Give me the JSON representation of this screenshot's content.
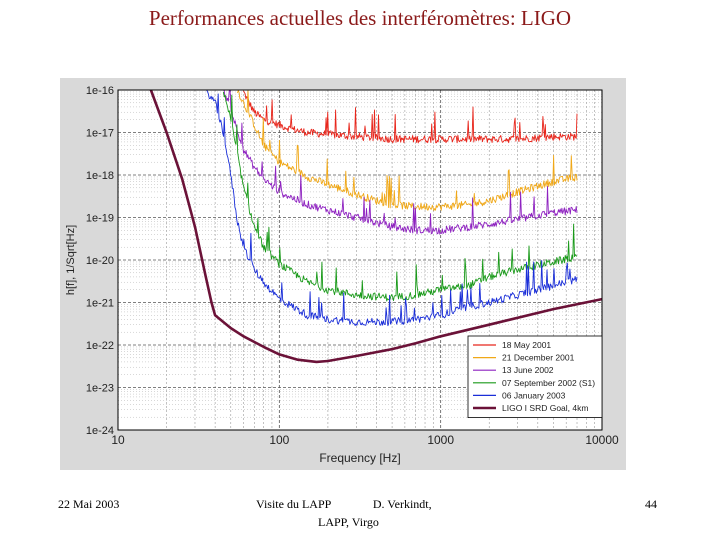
{
  "slide": {
    "title": "Performances actuelles des interféromètres: LIGO",
    "footer_date": "22 Mai 2003",
    "footer_center": "Visite du LAPP              D. Verkindt,",
    "footer_org": "LAPP, Virgo",
    "page_number": "44"
  },
  "chart_data": {
    "type": "line",
    "title": "",
    "xlabel": "Frequency [Hz]",
    "ylabel": "h[f], 1/Sqrt[Hz]",
    "xscale": "log",
    "yscale": "log",
    "xlim": [
      10,
      10000
    ],
    "ylim": [
      1e-24,
      1e-16
    ],
    "xticks": [
      10,
      100,
      1000,
      10000
    ],
    "xtick_labels": [
      "10",
      "100",
      "1000",
      "10000"
    ],
    "yticks": [
      1e-24,
      1e-23,
      1e-22,
      1e-21,
      1e-20,
      1e-19,
      1e-18,
      1e-17,
      1e-16
    ],
    "ytick_labels": [
      "1e-24",
      "1e-23",
      "1e-22",
      "1e-21",
      "1e-20",
      "1e-19",
      "1e-18",
      "1e-17",
      "1e-16"
    ],
    "grid": true,
    "legend_position": "bottom-right",
    "series": [
      {
        "name": "18 May 2001",
        "color": "#e8261c",
        "noisy": true,
        "x": [
          60,
          65,
          70,
          80,
          100,
          120,
          150,
          200,
          300,
          500,
          700,
          1000,
          1500,
          2000,
          3000,
          5000,
          7000
        ],
        "y": [
          9e-17,
          5e-17,
          3e-17,
          2e-17,
          1.5e-17,
          1.2e-17,
          1e-17,
          9e-18,
          8e-18,
          7e-18,
          7e-18,
          7e-18,
          7e-18,
          7e-18,
          7e-18,
          8e-18,
          8e-18
        ]
      },
      {
        "name": "21 December 2001",
        "color": "#f0a818",
        "noisy": true,
        "x": [
          55,
          60,
          70,
          80,
          100,
          150,
          200,
          300,
          400,
          500,
          700,
          1000,
          1500,
          2000,
          3000,
          5000,
          7000
        ],
        "y": [
          1e-16,
          5e-17,
          1.5e-17,
          5e-18,
          2e-18,
          9e-19,
          6e-19,
          3.5e-19,
          2.5e-19,
          2e-19,
          1.8e-19,
          1.8e-19,
          2e-19,
          2.5e-19,
          4e-19,
          7e-19,
          9e-19
        ]
      },
      {
        "name": "13 June 2002",
        "color": "#8e22c0",
        "noisy": true,
        "x": [
          45,
          50,
          55,
          60,
          70,
          80,
          100,
          150,
          200,
          300,
          500,
          700,
          1000,
          1500,
          2000,
          3000,
          5000,
          7000
        ],
        "y": [
          1e-16,
          4e-17,
          1e-17,
          4e-18,
          1.5e-18,
          8e-19,
          4e-19,
          2e-19,
          1.5e-19,
          1e-19,
          6e-20,
          5e-20,
          5e-20,
          6e-20,
          7e-20,
          9e-20,
          1.3e-19,
          1.5e-19
        ]
      },
      {
        "name": "07 September 2002 (S1)",
        "color": "#1a9a1a",
        "noisy": true,
        "x": [
          45,
          50,
          55,
          60,
          70,
          80,
          100,
          150,
          200,
          300,
          500,
          700,
          1000,
          1500,
          2000,
          3000,
          5000,
          7000
        ],
        "y": [
          1e-16,
          2e-17,
          3e-18,
          5e-19,
          6e-20,
          2e-20,
          8e-21,
          3e-21,
          2e-21,
          1.5e-21,
          1.3e-21,
          1.5e-21,
          2e-21,
          2.5e-21,
          4e-21,
          6e-21,
          9e-21,
          1.2e-20
        ]
      },
      {
        "name": "06 January 2003",
        "color": "#1a2ed8",
        "noisy": true,
        "x": [
          35,
          40,
          45,
          50,
          55,
          60,
          70,
          80,
          100,
          150,
          200,
          300,
          500,
          700,
          1000,
          1500,
          2000,
          3000,
          5000,
          7000
        ],
        "y": [
          1e-16,
          5e-17,
          1e-17,
          1e-18,
          8e-20,
          2e-20,
          6e-21,
          3e-21,
          1.2e-21,
          5e-22,
          4e-22,
          3.5e-22,
          3.5e-22,
          4e-22,
          5e-22,
          8e-22,
          1e-21,
          1.5e-21,
          2.5e-21,
          3.5e-21
        ]
      },
      {
        "name": "LIGO I SRD Goal, 4km",
        "color": "#6b1238",
        "noisy": false,
        "x": [
          16,
          20,
          25,
          30,
          35,
          38,
          40,
          50,
          60,
          80,
          100,
          130,
          170,
          200,
          300,
          500,
          700,
          1000,
          2000,
          5000,
          10000
        ],
        "y": [
          1e-16,
          1e-17,
          8e-19,
          6e-20,
          4e-21,
          1e-21,
          5e-22,
          2.5e-22,
          1.6e-22,
          9e-23,
          6e-23,
          4.5e-23,
          4e-23,
          4.2e-23,
          5.5e-23,
          8e-23,
          1.1e-22,
          1.6e-22,
          3e-22,
          7e-22,
          1.2e-21
        ]
      }
    ]
  }
}
